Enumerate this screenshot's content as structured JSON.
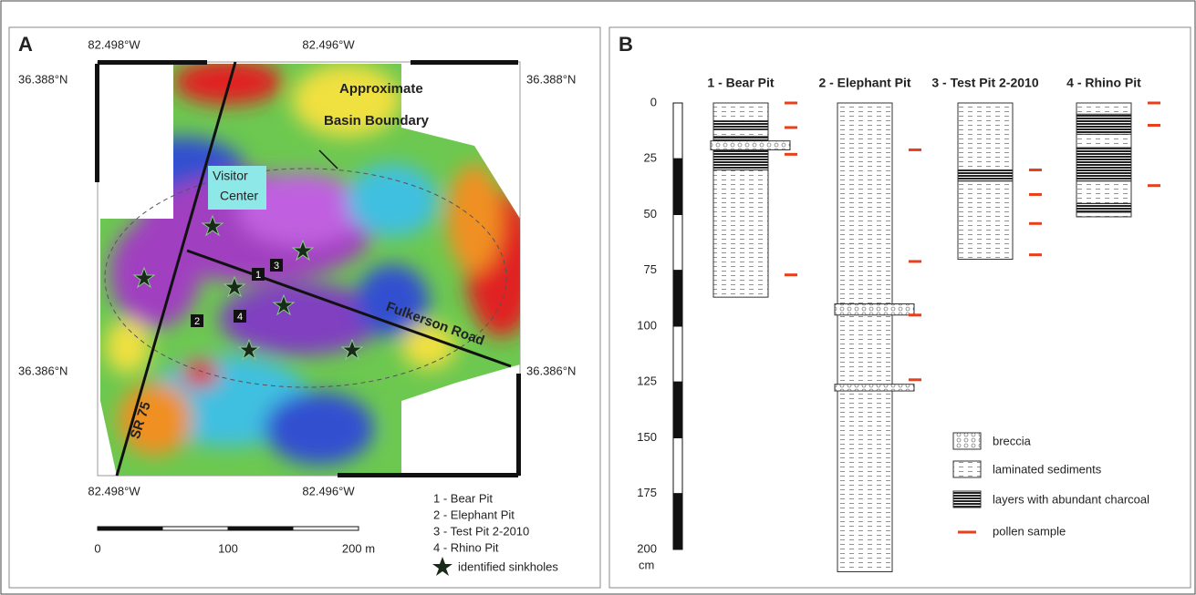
{
  "panel_a": {
    "label": "A",
    "coords": {
      "top": [
        "82.498°W",
        "82.496°W"
      ],
      "bottom": [
        "82.498°W",
        "82.496°W"
      ],
      "left": [
        "36.388°N",
        "36.386°N"
      ],
      "right": [
        "36.388°N",
        "36.386°N"
      ]
    },
    "map_labels": {
      "basin": [
        "Approximate",
        "Basin Boundary"
      ],
      "visitor": [
        "Visitor",
        "Center"
      ],
      "road": "Fulkerson Road",
      "highway": "SR 75"
    },
    "pits": [
      "1",
      "2",
      "3",
      "4"
    ],
    "legend": [
      "1 - Bear Pit",
      "2 - Elephant Pit",
      "3 - Test Pit 2-2010",
      "4 - Rhino Pit",
      "identified sinkholes"
    ],
    "scale_bar": [
      "0",
      "100",
      "200 m"
    ]
  },
  "panel_b": {
    "label": "B",
    "depth_axis": {
      "range": [
        0,
        200
      ],
      "ticks": [
        0,
        25,
        50,
        75,
        100,
        125,
        150,
        175,
        200
      ],
      "unit": "cm"
    },
    "columns": [
      {
        "name": "1 - Bear Pit",
        "depth": 87,
        "breccia": [
          [
            17,
            21
          ]
        ],
        "charcoal": [
          [
            8,
            12
          ],
          [
            15,
            30
          ]
        ],
        "pollen": [
          0,
          11,
          23,
          77
        ]
      },
      {
        "name": "2 - Elephant Pit",
        "depth": 210,
        "breccia": [
          [
            90,
            95
          ],
          [
            126,
            129
          ]
        ],
        "charcoal": [],
        "pollen": [
          21,
          71,
          95,
          124
        ]
      },
      {
        "name": "3 - Test Pit 2-2010",
        "depth": 70,
        "breccia": [],
        "charcoal": [
          [
            30,
            35
          ]
        ],
        "pollen": [
          30,
          41,
          54,
          68
        ]
      },
      {
        "name": "4 - Rhino Pit",
        "depth": 51,
        "breccia": [],
        "charcoal": [
          [
            5,
            14
          ],
          [
            20,
            35
          ],
          [
            45,
            49
          ]
        ],
        "pollen": [
          0,
          10,
          37
        ]
      }
    ],
    "legend": [
      "breccia",
      "laminated sediments",
      "layers with abundant charcoal",
      "pollen sample"
    ]
  }
}
